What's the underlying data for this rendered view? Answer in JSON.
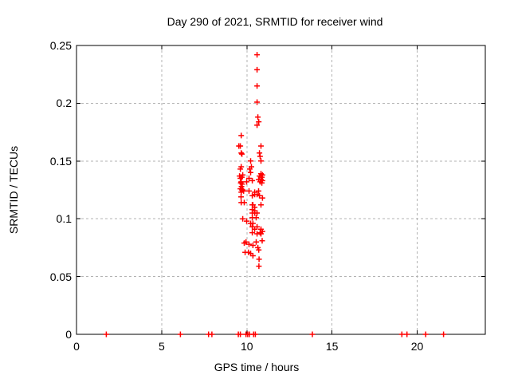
{
  "colors": {
    "marker": "#ff0000",
    "grid": "#b3b3b3",
    "frame": "#000000",
    "background": "#ffffff",
    "text": "#000000"
  },
  "chart_data": {
    "type": "scatter",
    "title": "Day 290 of 2021, SRMTID for receiver wind",
    "xlabel": "GPS time / hours",
    "ylabel": "SRMTID / TECUs",
    "xlim": [
      0,
      24
    ],
    "ylim": [
      0,
      0.25
    ],
    "grid": true,
    "legend": "none",
    "xticks": {
      "values": [
        0,
        5,
        10,
        15,
        20
      ],
      "labels": [
        "0",
        "5",
        "10",
        "15",
        "20"
      ]
    },
    "yticks": {
      "values": [
        0,
        0.05,
        0.1,
        0.15,
        0.2,
        0.25
      ],
      "labels": [
        "0",
        "0.05",
        "0.1",
        "0.15",
        "0.2",
        "0.25"
      ]
    },
    "marker": {
      "shape": "plus",
      "size": 7
    },
    "series": [
      {
        "name": "SRMTID",
        "points": [
          [
            10.6,
            0.242
          ],
          [
            10.6,
            0.229
          ],
          [
            10.6,
            0.215
          ],
          [
            10.6,
            0.201
          ],
          [
            10.65,
            0.188
          ],
          [
            10.7,
            0.184
          ],
          [
            10.6,
            0.181
          ],
          [
            9.67,
            0.172
          ],
          [
            9.53,
            0.163
          ],
          [
            9.62,
            0.163
          ],
          [
            10.83,
            0.163
          ],
          [
            9.67,
            0.157
          ],
          [
            9.71,
            0.156
          ],
          [
            10.74,
            0.157
          ],
          [
            10.78,
            0.154
          ],
          [
            10.22,
            0.15
          ],
          [
            10.83,
            0.15
          ],
          [
            9.67,
            0.145
          ],
          [
            10.27,
            0.145
          ],
          [
            9.62,
            0.143
          ],
          [
            10.17,
            0.143
          ],
          [
            10.22,
            0.14
          ],
          [
            10.83,
            0.139
          ],
          [
            10.92,
            0.138
          ],
          [
            9.57,
            0.137
          ],
          [
            9.76,
            0.138
          ],
          [
            9.71,
            0.136
          ],
          [
            9.62,
            0.135
          ],
          [
            10.13,
            0.135
          ],
          [
            10.74,
            0.137
          ],
          [
            10.88,
            0.136
          ],
          [
            10.69,
            0.134
          ],
          [
            10.83,
            0.134
          ],
          [
            10.92,
            0.133
          ],
          [
            10.88,
            0.131
          ],
          [
            9.67,
            0.132
          ],
          [
            9.99,
            0.132
          ],
          [
            10.32,
            0.133
          ],
          [
            10.78,
            0.132
          ],
          [
            9.64,
            0.131
          ],
          [
            9.69,
            0.128
          ],
          [
            9.73,
            0.13
          ],
          [
            9.62,
            0.126
          ],
          [
            9.71,
            0.125
          ],
          [
            9.76,
            0.125
          ],
          [
            9.81,
            0.124
          ],
          [
            9.67,
            0.123
          ],
          [
            10.13,
            0.124
          ],
          [
            10.46,
            0.123
          ],
          [
            10.69,
            0.124
          ],
          [
            10.32,
            0.12
          ],
          [
            10.46,
            0.121
          ],
          [
            10.6,
            0.121
          ],
          [
            10.74,
            0.12
          ],
          [
            10.92,
            0.118
          ],
          [
            9.66,
            0.119
          ],
          [
            9.67,
            0.114
          ],
          [
            9.85,
            0.114
          ],
          [
            10.32,
            0.112
          ],
          [
            10.36,
            0.112
          ],
          [
            10.46,
            0.11
          ],
          [
            10.83,
            0.112
          ],
          [
            10.32,
            0.108
          ],
          [
            10.46,
            0.107
          ],
          [
            10.32,
            0.105
          ],
          [
            10.46,
            0.105
          ],
          [
            10.6,
            0.105
          ],
          [
            9.76,
            0.1
          ],
          [
            9.99,
            0.098
          ],
          [
            10.32,
            0.101
          ],
          [
            10.55,
            0.101
          ],
          [
            10.22,
            0.096
          ],
          [
            10.36,
            0.096
          ],
          [
            10.32,
            0.093
          ],
          [
            10.6,
            0.093
          ],
          [
            10.46,
            0.091
          ],
          [
            10.83,
            0.091
          ],
          [
            10.92,
            0.089
          ],
          [
            10.32,
            0.088
          ],
          [
            10.6,
            0.087
          ],
          [
            10.78,
            0.088
          ],
          [
            10.83,
            0.087
          ],
          [
            9.85,
            0.079
          ],
          [
            9.95,
            0.08
          ],
          [
            10.13,
            0.078
          ],
          [
            10.55,
            0.08
          ],
          [
            10.9,
            0.081
          ],
          [
            10.36,
            0.077
          ],
          [
            10.65,
            0.075
          ],
          [
            10.7,
            0.073
          ],
          [
            9.9,
            0.071
          ],
          [
            10.09,
            0.071
          ],
          [
            10.22,
            0.07
          ],
          [
            10.36,
            0.068
          ],
          [
            10.72,
            0.065
          ],
          [
            10.71,
            0.059
          ],
          [
            1.75,
            0
          ],
          [
            6.1,
            0
          ],
          [
            7.75,
            0
          ],
          [
            7.95,
            0
          ],
          [
            9.5,
            0
          ],
          [
            9.62,
            0
          ],
          [
            9.95,
            0
          ],
          [
            10.05,
            0
          ],
          [
            10.15,
            0
          ],
          [
            10.4,
            0
          ],
          [
            10.5,
            0
          ],
          [
            13.85,
            0
          ],
          [
            19.1,
            0
          ],
          [
            19.4,
            0
          ],
          [
            20.5,
            0
          ],
          [
            21.55,
            0
          ]
        ]
      }
    ]
  }
}
